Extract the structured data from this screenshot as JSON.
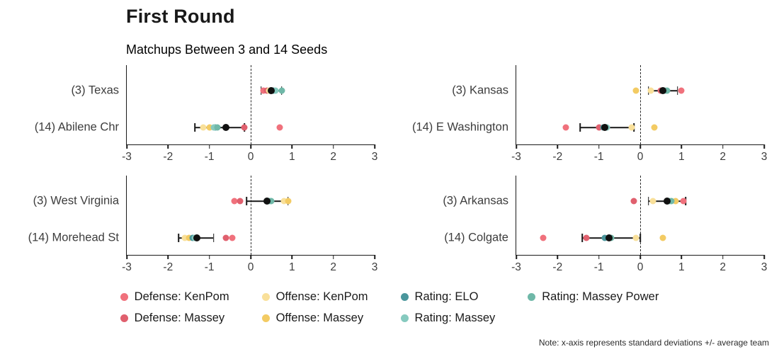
{
  "header": {
    "title": "First Round",
    "subtitle": "Matchups Between 3 and 14 Seeds"
  },
  "note": "Note: x-axis represents standard deviations +/- average team",
  "chart_data": {
    "type": "scatter",
    "title": "First Round",
    "subtitle": "Matchups Between 3 and 14 Seeds",
    "xlabel": "standard deviations +/- average team",
    "x_axis": {
      "min": -3,
      "max": 3,
      "ticks": [
        -3,
        -2,
        -1,
        0,
        1,
        2,
        3
      ],
      "reference_line": 0
    },
    "mean_color": "#111111",
    "error_bar_color": "#1a1a1a",
    "series_colors": {
      "Defense: KenPom": "#F0717C",
      "Defense: Massey": "#E0606E",
      "Offense: KenPom": "#F9E09A",
      "Offense: Massey": "#F3CB63",
      "Rating: ELO": "#4A969C",
      "Rating: Massey": "#86CABF",
      "Rating: Massey Power": "#6FB8A8"
    },
    "legend": [
      "Defense: KenPom",
      "Defense: Massey",
      "Offense: KenPom",
      "Offense: Massey",
      "Rating: ELO",
      "Rating: Massey",
      "Rating: Massey Power"
    ],
    "panels": [
      {
        "name": "texas-abilene-chr",
        "teams": [
          {
            "label": "(3) Texas",
            "mean": 0.5,
            "ci": [
              0.25,
              0.75
            ],
            "points": {
              "Defense: KenPom": 0.3,
              "Defense: Massey": 0.4,
              "Offense: KenPom": 0.45,
              "Offense: Massey": 0.5,
              "Rating: ELO": 0.55,
              "Rating: Massey": 0.6,
              "Rating: Massey Power": 0.75
            }
          },
          {
            "label": "(14) Abilene Chr",
            "mean": -0.6,
            "ci": [
              -1.35,
              -0.15
            ],
            "points": {
              "Defense: KenPom": 0.7,
              "Defense: Massey": -0.15,
              "Offense: KenPom": -1.15,
              "Offense: Massey": -1.0,
              "Rating: ELO": -0.85,
              "Rating: Massey": -0.9,
              "Rating: Massey Power": -0.8
            }
          }
        ]
      },
      {
        "name": "kansas-e-washington",
        "teams": [
          {
            "label": "(3) Kansas",
            "mean": 0.55,
            "ci": [
              0.2,
              0.9
            ],
            "points": {
              "Defense: KenPom": 1.0,
              "Defense: Massey": 0.5,
              "Offense: KenPom": 0.25,
              "Offense: Massey": -0.1,
              "Rating: ELO": 0.55,
              "Rating: Massey": 0.6,
              "Rating: Massey Power": 0.65
            }
          },
          {
            "label": "(14) E Washington",
            "mean": -0.85,
            "ci": [
              -1.45,
              -0.15
            ],
            "points": {
              "Defense: KenPom": -1.8,
              "Defense: Massey": -1.0,
              "Offense: KenPom": -0.2,
              "Offense: Massey": 0.35,
              "Rating: ELO": -0.9,
              "Rating: Massey": -0.8,
              "Rating: Massey Power": -0.85
            }
          }
        ]
      },
      {
        "name": "west-virginia-morehead-st",
        "teams": [
          {
            "label": "(3) West Virginia",
            "mean": 0.4,
            "ci": [
              -0.1,
              0.9
            ],
            "points": {
              "Defense: KenPom": -0.4,
              "Defense: Massey": -0.25,
              "Offense: KenPom": 0.8,
              "Offense: Massey": 0.9,
              "Rating: ELO": 0.4,
              "Rating: Massey": 0.45,
              "Rating: Massey Power": 0.5
            }
          },
          {
            "label": "(14) Morehead St",
            "mean": -1.3,
            "ci": [
              -1.75,
              -0.9
            ],
            "points": {
              "Defense: KenPom": -0.45,
              "Defense: Massey": -0.6,
              "Offense: KenPom": -1.6,
              "Offense: Massey": -1.5,
              "Rating: ELO": -1.4,
              "Rating: Massey": -1.35,
              "Rating: Massey Power": -1.3
            }
          }
        ]
      },
      {
        "name": "arkansas-colgate",
        "teams": [
          {
            "label": "(3) Arkansas",
            "mean": 0.65,
            "ci": [
              0.2,
              1.1
            ],
            "points": {
              "Defense: KenPom": 1.05,
              "Defense: Massey": -0.15,
              "Offense: KenPom": 0.3,
              "Offense: Massey": 0.85,
              "Rating: ELO": 0.65,
              "Rating: Massey": 0.7,
              "Rating: Massey Power": 0.75
            }
          },
          {
            "label": "(14) Colgate",
            "mean": -0.75,
            "ci": [
              -1.4,
              0.0
            ],
            "points": {
              "Defense: KenPom": -2.35,
              "Defense: Massey": -1.3,
              "Offense: KenPom": -0.1,
              "Offense: Massey": 0.55,
              "Rating: ELO": -0.85,
              "Rating: Massey": -0.75,
              "Rating: Massey Power": -0.7
            }
          }
        ]
      }
    ]
  }
}
